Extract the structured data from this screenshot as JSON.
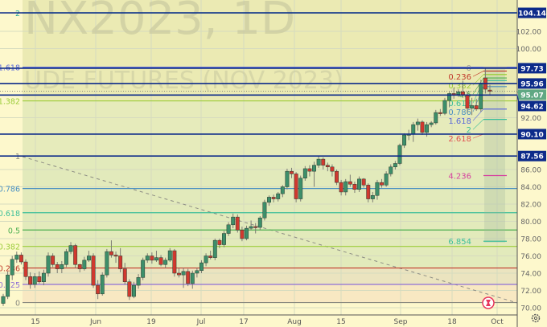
{
  "watermark": {
    "symbol_line": "NX2023, 1D",
    "description_line": "UDE FUTURES (NOV 2023)"
  },
  "chart_data": {
    "type": "candlestick",
    "price_axis": {
      "range": [
        70.0,
        104.14
      ],
      "ticks": [
        "102.00",
        "100.00",
        "92.00",
        "86.00",
        "84.00",
        "82.00",
        "80.00",
        "78.00",
        "76.00",
        "74.00",
        "72.00",
        "70.00"
      ],
      "position": "right"
    },
    "time_axis": {
      "ticks": [
        "15",
        "Jun",
        "19",
        "Jul",
        "17",
        "Aug",
        "15",
        "Sep",
        "18",
        "Oct"
      ]
    },
    "grid": true,
    "candles_ohlc": [
      [
        70.5,
        71.6,
        70.2,
        71.3
      ],
      [
        71.3,
        74.2,
        71.0,
        73.8
      ],
      [
        73.8,
        76.0,
        73.2,
        75.6
      ],
      [
        75.6,
        76.5,
        75.2,
        76.1
      ],
      [
        76.1,
        76.4,
        75.0,
        75.3
      ],
      [
        75.3,
        75.6,
        73.2,
        73.6
      ],
      [
        73.6,
        74.1,
        72.2,
        72.7
      ],
      [
        72.7,
        74.0,
        72.3,
        73.6
      ],
      [
        73.6,
        74.2,
        72.8,
        73.0
      ],
      [
        73.0,
        74.4,
        72.6,
        74.0
      ],
      [
        74.0,
        76.4,
        73.6,
        76.0
      ],
      [
        76.0,
        76.3,
        74.7,
        75.0
      ],
      [
        75.0,
        75.3,
        74.0,
        74.5
      ],
      [
        74.5,
        75.4,
        74.0,
        75.0
      ],
      [
        75.0,
        76.8,
        74.7,
        76.5
      ],
      [
        76.5,
        77.6,
        76.2,
        77.2
      ],
      [
        77.2,
        77.4,
        74.6,
        75.0
      ],
      [
        75.0,
        75.1,
        74.1,
        74.5
      ],
      [
        74.5,
        75.9,
        74.3,
        75.5
      ],
      [
        75.5,
        76.6,
        75.3,
        76.0
      ],
      [
        76.0,
        76.3,
        72.3,
        72.6
      ],
      [
        72.6,
        73.2,
        71.0,
        71.6
      ],
      [
        71.6,
        74.1,
        71.4,
        73.8
      ],
      [
        73.8,
        76.8,
        73.5,
        76.5
      ],
      [
        76.5,
        77.8,
        75.8,
        76.1
      ],
      [
        76.1,
        76.5,
        75.2,
        76.0
      ],
      [
        76.0,
        76.9,
        74.1,
        74.5
      ],
      [
        74.5,
        75.2,
        72.7,
        73.0
      ],
      [
        73.0,
        73.3,
        70.9,
        71.3
      ],
      [
        71.3,
        73.0,
        71.1,
        72.6
      ],
      [
        72.6,
        73.9,
        72.2,
        73.5
      ],
      [
        73.5,
        75.8,
        73.2,
        75.5
      ],
      [
        75.5,
        76.3,
        75.2,
        76.0
      ],
      [
        76.0,
        76.4,
        75.1,
        75.5
      ],
      [
        75.5,
        76.6,
        75.3,
        75.8
      ],
      [
        75.8,
        76.1,
        74.8,
        75.0
      ],
      [
        75.0,
        75.8,
        74.6,
        75.5
      ],
      [
        75.5,
        76.9,
        75.3,
        76.6
      ],
      [
        76.6,
        76.8,
        73.6,
        74.0
      ],
      [
        74.0,
        74.6,
        73.5,
        73.8
      ],
      [
        73.8,
        74.6,
        72.3,
        74.2
      ],
      [
        74.2,
        74.5,
        72.5,
        72.8
      ],
      [
        72.8,
        74.3,
        72.2,
        74.0
      ],
      [
        74.0,
        74.6,
        73.5,
        74.3
      ],
      [
        74.3,
        75.5,
        74.0,
        75.2
      ],
      [
        75.2,
        76.3,
        74.8,
        76.0
      ],
      [
        76.0,
        76.6,
        75.6,
        75.8
      ],
      [
        75.8,
        78.0,
        75.5,
        77.8
      ],
      [
        77.8,
        78.0,
        76.9,
        77.3
      ],
      [
        77.3,
        78.9,
        77.0,
        78.6
      ],
      [
        78.6,
        79.9,
        78.3,
        79.6
      ],
      [
        79.6,
        80.9,
        79.2,
        80.5
      ],
      [
        80.5,
        80.8,
        78.7,
        79.0
      ],
      [
        79.0,
        79.4,
        77.7,
        78.0
      ],
      [
        78.0,
        79.5,
        77.8,
        79.2
      ],
      [
        79.2,
        80.1,
        79.0,
        79.4
      ],
      [
        79.4,
        79.8,
        78.6,
        79.3
      ],
      [
        79.3,
        80.6,
        79.0,
        80.4
      ],
      [
        80.4,
        82.5,
        80.1,
        82.2
      ],
      [
        82.2,
        83.0,
        81.8,
        82.8
      ],
      [
        82.8,
        83.1,
        82.2,
        82.6
      ],
      [
        82.6,
        83.4,
        82.3,
        83.2
      ],
      [
        83.2,
        84.2,
        82.8,
        84.0
      ],
      [
        84.0,
        86.1,
        83.7,
        85.8
      ],
      [
        85.8,
        86.2,
        85.0,
        85.5
      ],
      [
        85.5,
        85.7,
        82.2,
        82.6
      ],
      [
        82.6,
        85.3,
        82.3,
        85.0
      ],
      [
        85.0,
        86.4,
        84.7,
        86.1
      ],
      [
        86.1,
        86.5,
        85.2,
        85.8
      ],
      [
        85.8,
        86.9,
        84.0,
        86.5
      ],
      [
        86.5,
        87.6,
        86.2,
        87.2
      ],
      [
        87.2,
        87.4,
        86.0,
        86.5
      ],
      [
        86.5,
        86.8,
        85.8,
        86.3
      ],
      [
        86.3,
        86.6,
        85.2,
        85.8
      ],
      [
        85.8,
        86.0,
        84.2,
        84.5
      ],
      [
        84.5,
        84.8,
        83.0,
        83.4
      ],
      [
        83.4,
        84.9,
        83.0,
        84.6
      ],
      [
        84.6,
        85.4,
        84.0,
        84.3
      ],
      [
        84.3,
        84.6,
        83.3,
        83.7
      ],
      [
        83.7,
        85.2,
        83.4,
        84.9
      ],
      [
        84.9,
        85.0,
        83.9,
        84.2
      ],
      [
        84.2,
        84.4,
        82.2,
        82.6
      ],
      [
        82.6,
        83.4,
        82.2,
        83.0
      ],
      [
        83.0,
        84.8,
        82.5,
        84.5
      ],
      [
        84.5,
        84.9,
        83.9,
        84.2
      ],
      [
        84.2,
        85.8,
        84.0,
        85.5
      ],
      [
        85.5,
        86.6,
        85.2,
        86.3
      ],
      [
        86.3,
        87.0,
        86.0,
        86.7
      ],
      [
        86.7,
        89.0,
        86.5,
        88.8
      ],
      [
        88.8,
        90.2,
        88.5,
        90.0
      ],
      [
        90.0,
        90.6,
        89.4,
        90.1
      ],
      [
        90.1,
        91.5,
        89.2,
        91.2
      ],
      [
        91.2,
        91.9,
        90.5,
        91.5
      ],
      [
        91.5,
        91.7,
        90.0,
        90.3
      ],
      [
        90.3,
        91.5,
        89.8,
        91.2
      ],
      [
        91.2,
        91.6,
        90.9,
        91.4
      ],
      [
        91.4,
        92.9,
        91.2,
        92.6
      ],
      [
        92.6,
        93.0,
        92.2,
        92.5
      ],
      [
        92.5,
        94.3,
        92.3,
        94.0
      ],
      [
        94.0,
        95.0,
        93.2,
        94.8
      ],
      [
        94.8,
        95.5,
        94.2,
        94.7
      ],
      [
        94.7,
        95.3,
        94.4,
        95.0
      ],
      [
        95.0,
        96.3,
        94.3,
        94.6
      ],
      [
        94.6,
        95.0,
        92.6,
        93.1
      ],
      [
        93.1,
        94.3,
        92.3,
        93.4
      ],
      [
        93.4,
        94.2,
        92.8,
        93.0
      ],
      [
        93.0,
        96.4,
        92.7,
        96.0
      ],
      [
        96.6,
        97.7,
        94.8,
        95.3
      ],
      [
        95.2,
        95.8,
        94.6,
        95.07
      ]
    ],
    "price_levels": [
      {
        "label": "104.14",
        "value": 104.14
      },
      {
        "label": "97.73",
        "value": 97.73
      },
      {
        "label": "95.96",
        "value": 95.96
      },
      {
        "label": "94.62",
        "value": 94.62
      },
      {
        "label": "90.10",
        "value": 90.1
      },
      {
        "label": "87.56",
        "value": 87.56
      }
    ],
    "current_price": {
      "label": "95.07",
      "value": 95.07
    },
    "fib_retracement": [
      {
        "label": "2",
        "value": 104.14,
        "color": "#26a69a"
      },
      {
        "label": "1.618",
        "value": 97.85,
        "color": "#5c6bd8"
      },
      {
        "label": "1.382",
        "value": 93.95,
        "color": "#9ccc3a"
      },
      {
        "label": "1",
        "value": 87.56,
        "color": "#8a8a80"
      },
      {
        "label": "0.786",
        "value": 83.8,
        "color": "#4a90c2"
      },
      {
        "label": "0.618",
        "value": 81.0,
        "color": "#3cbf9a"
      },
      {
        "label": "0.5",
        "value": 79.0,
        "color": "#4caf50"
      },
      {
        "label": "0.382",
        "value": 77.1,
        "color": "#9ccc3a"
      },
      {
        "label": "0.236",
        "value": 74.6,
        "color": "#c0392b"
      },
      {
        "label": "0.125",
        "value": 72.7,
        "color": "#8e6fd6"
      },
      {
        "label": "0",
        "value": 70.6,
        "color": "#8a8a80"
      }
    ],
    "fib_extension": [
      {
        "label": "0",
        "value": 97.8,
        "color": "#9a9a9a"
      },
      {
        "label": "0.236",
        "value": 97.4,
        "color": "#c0392b"
      },
      {
        "label": "0.382",
        "value": 97.0,
        "color": "#9ccc3a"
      },
      {
        "label": "0.5",
        "value": 96.6,
        "color": "#4caf50"
      },
      {
        "label": "0.618",
        "value": 96.3,
        "color": "#3cbf9a"
      },
      {
        "label": "0.786",
        "value": 95.6,
        "color": "#4a90c2"
      },
      {
        "label": "1.618",
        "value": 93.0,
        "color": "#5c6bd8"
      },
      {
        "label": "2",
        "value": 91.8,
        "color": "#3cbf9a"
      },
      {
        "label": "2.618",
        "value": 90.1,
        "color": "#e05050"
      },
      {
        "label": "4.236",
        "value": 85.3,
        "color": "#d6409f"
      },
      {
        "label": "6.854",
        "value": 77.7,
        "color": "#3cbf9a"
      }
    ],
    "colors": {
      "up": "#3d8f6a",
      "down": "#d0392f",
      "level_line": "#0d2b8a",
      "current_price": "#5fa883"
    }
  },
  "icons": {
    "alert": "alarm-clock-icon",
    "settings": "gear-icon"
  }
}
